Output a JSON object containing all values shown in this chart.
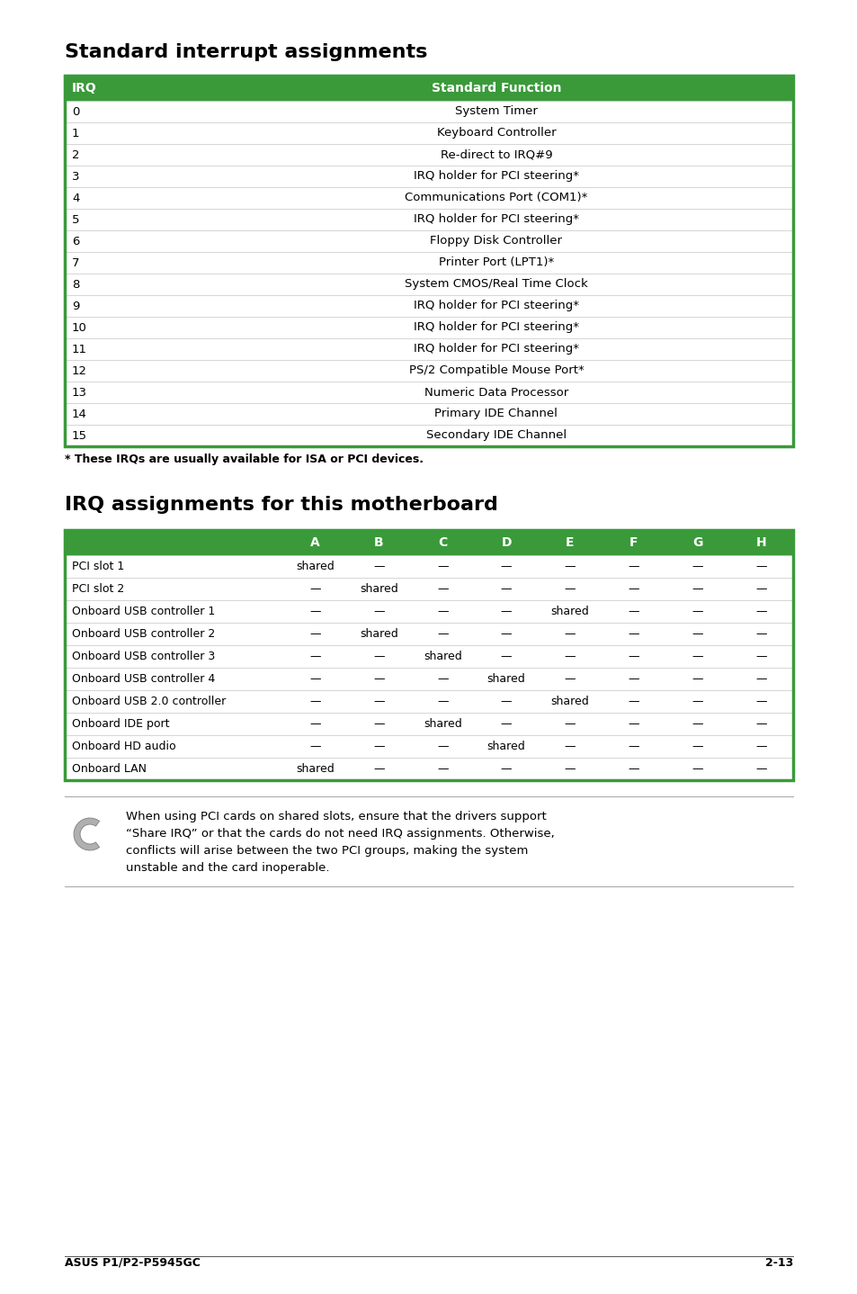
{
  "title1": "Standard interrupt assignments",
  "title2": "IRQ assignments for this motherboard",
  "table1_header": [
    "IRQ",
    "Standard Function"
  ],
  "table1_rows": [
    [
      "0",
      "System Timer"
    ],
    [
      "1",
      "Keyboard Controller"
    ],
    [
      "2",
      "Re-direct to IRQ#9"
    ],
    [
      "3",
      "IRQ holder for PCI steering*"
    ],
    [
      "4",
      "Communications Port (COM1)*"
    ],
    [
      "5",
      "IRQ holder for PCI steering*"
    ],
    [
      "6",
      "Floppy Disk Controller"
    ],
    [
      "7",
      "Printer Port (LPT1)*"
    ],
    [
      "8",
      "System CMOS/Real Time Clock"
    ],
    [
      "9",
      "IRQ holder for PCI steering*"
    ],
    [
      "10",
      "IRQ holder for PCI steering*"
    ],
    [
      "11",
      "IRQ holder for PCI steering*"
    ],
    [
      "12",
      "PS/2 Compatible Mouse Port*"
    ],
    [
      "13",
      "Numeric Data Processor"
    ],
    [
      "14",
      "Primary IDE Channel"
    ],
    [
      "15",
      "Secondary IDE Channel"
    ]
  ],
  "footnote": "* These IRQs are usually available for ISA or PCI devices.",
  "table2_header": [
    "",
    "A",
    "B",
    "C",
    "D",
    "E",
    "F",
    "G",
    "H"
  ],
  "table2_rows": [
    [
      "PCI slot 1",
      "shared",
      "—",
      "—",
      "—",
      "—",
      "—",
      "—",
      "—"
    ],
    [
      "PCI slot 2",
      "—",
      "shared",
      "—",
      "—",
      "—",
      "—",
      "—",
      "—"
    ],
    [
      "Onboard USB controller 1",
      "—",
      "—",
      "—",
      "—",
      "shared",
      "—",
      "—",
      "—"
    ],
    [
      "Onboard USB controller 2",
      "—",
      "shared",
      "—",
      "—",
      "—",
      "—",
      "—",
      "—"
    ],
    [
      "Onboard USB controller 3",
      "—",
      "—",
      "shared",
      "—",
      "—",
      "—",
      "—",
      "—"
    ],
    [
      "Onboard USB controller 4",
      "—",
      "—",
      "—",
      "shared",
      "—",
      "—",
      "—",
      "—"
    ],
    [
      "Onboard USB 2.0 controller",
      "—",
      "—",
      "—",
      "—",
      "shared",
      "—",
      "—",
      "—"
    ],
    [
      "Onboard IDE port",
      "—",
      "—",
      "shared",
      "—",
      "—",
      "—",
      "—",
      "—"
    ],
    [
      "Onboard HD audio",
      "—",
      "—",
      "—",
      "shared",
      "—",
      "—",
      "—",
      "—"
    ],
    [
      "Onboard LAN",
      "shared",
      "—",
      "—",
      "—",
      "—",
      "—",
      "—",
      "—"
    ]
  ],
  "note_line1": "When using PCI cards on shared slots, ensure that the drivers support",
  "note_line2": "“Share IRQ” or that the cards do not need IRQ assignments. Otherwise,",
  "note_line3": "conflicts will arise between the two PCI groups, making the system",
  "note_line4": "unstable and the card inoperable.",
  "header_bg": "#3a9a3a",
  "header_fg": "#ffffff",
  "border_color": "#3a9a3a",
  "text_color": "#000000",
  "footer_text": "ASUS P1/P2-P5945GC",
  "footer_page": "2-13",
  "page_bg": "#ffffff"
}
